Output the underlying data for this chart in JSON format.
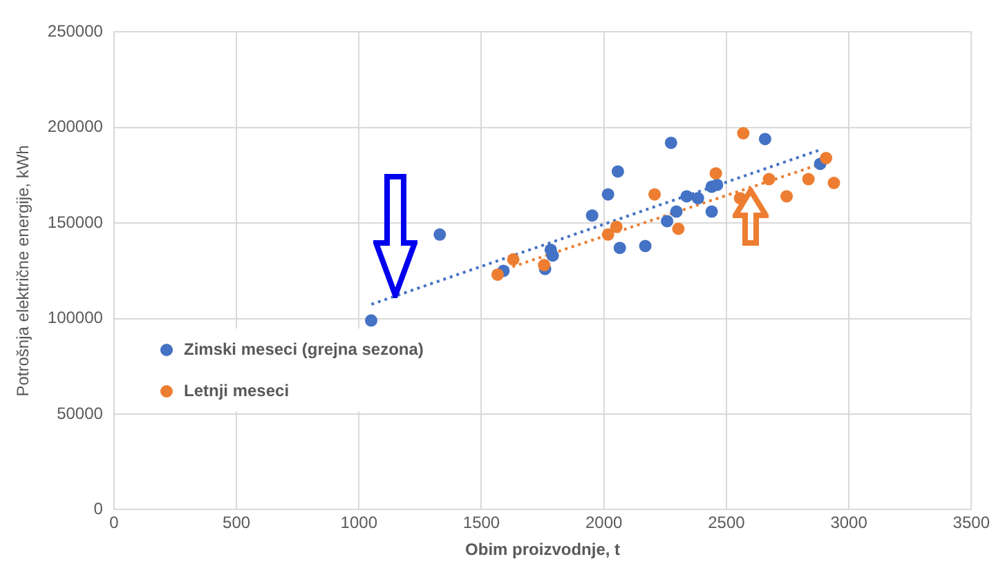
{
  "chart_data": {
    "type": "scatter",
    "xlabel": "Obim proizvodnje, t",
    "ylabel": "Potrošnja električne energije, kWh",
    "xlim": [
      0,
      3500
    ],
    "xticks": [
      0,
      500,
      1000,
      1500,
      2000,
      2500,
      3000,
      3500
    ],
    "ylim": [
      0,
      250000
    ],
    "yticks": [
      0,
      50000,
      100000,
      150000,
      200000,
      250000
    ],
    "grid": true,
    "legend": "left",
    "marker": "circle",
    "series": [
      {
        "name": "Zimski meseci (grejna sezona)",
        "color": "#4472c4",
        "x": [
          1050,
          1330,
          1590,
          1760,
          1783,
          1791,
          1952,
          2017,
          2057,
          2065,
          2169,
          2258,
          2274,
          2296,
          2338,
          2384,
          2440,
          2440,
          2462,
          2658,
          2883
        ],
        "values": [
          99000,
          144000,
          125000,
          126000,
          136000,
          133000,
          154000,
          165000,
          177000,
          137000,
          138000,
          151000,
          192000,
          156000,
          164000,
          163000,
          156000,
          169000,
          170000,
          194000,
          181000
        ]
      },
      {
        "name": "Letnji meseci",
        "color": "#ed7d31",
        "x": [
          1566,
          1630,
          1756,
          2017,
          2051,
          2207,
          2304,
          2457,
          2556,
          2569,
          2674,
          2746,
          2835,
          2907,
          2939
        ],
        "values": [
          123000,
          131000,
          128000,
          144000,
          148000,
          165000,
          147000,
          176000,
          163000,
          197000,
          173000,
          164000,
          173000,
          184000,
          171000
        ]
      },
      {
        "type": "line",
        "color": "#4472c4",
        "line_style": "dotted",
        "marker": "none",
        "x": [
          1051,
          2875
        ],
        "values": [
          107500,
          188000
        ]
      },
      {
        "type": "line",
        "color": "#ed7d31",
        "line_style": "dotted",
        "marker": "none",
        "x": [
          1600,
          2875
        ],
        "values": [
          126000,
          180500
        ]
      }
    ]
  }
}
